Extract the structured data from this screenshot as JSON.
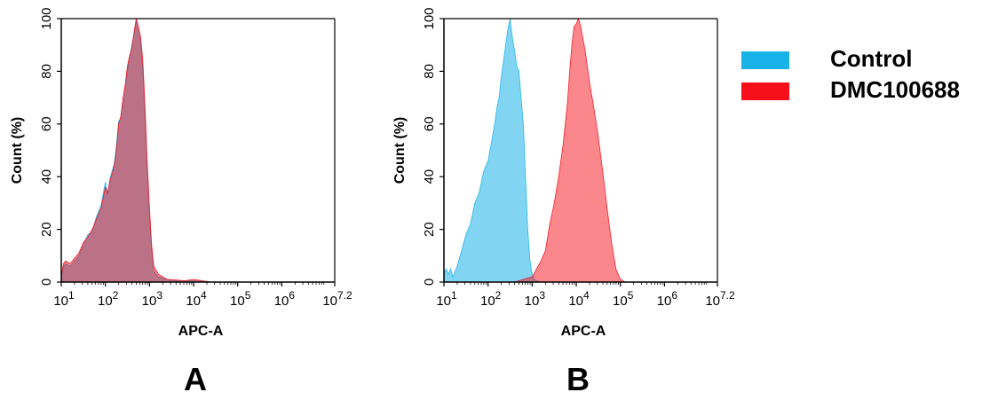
{
  "legend": [
    {
      "label": "Control",
      "color": "#19b2e8"
    },
    {
      "label": "DMC100688",
      "color": "#f5101a"
    }
  ],
  "chart_data": [
    {
      "type": "area",
      "panel_label": "A",
      "xlabel": "APC-A",
      "ylabel": "Count  (%)",
      "x_scale": "log10",
      "xlim": [
        1,
        7.2
      ],
      "ylim": [
        0,
        100
      ],
      "x_ticks": [
        {
          "base": "10",
          "exp": "1"
        },
        {
          "base": "10",
          "exp": "2"
        },
        {
          "base": "10",
          "exp": "3"
        },
        {
          "base": "10",
          "exp": "4"
        },
        {
          "base": "10",
          "exp": "5"
        },
        {
          "base": "10",
          "exp": "6"
        },
        {
          "base": "10",
          "exp": "7.2"
        }
      ],
      "y_ticks": [
        "0",
        "20",
        "40",
        "60",
        "80",
        "100"
      ],
      "series": [
        {
          "name": "Control",
          "color": "#19b2e8",
          "x": [
            1.0,
            1.05,
            1.1,
            1.2,
            1.3,
            1.4,
            1.5,
            1.6,
            1.7,
            1.8,
            1.9,
            2.0,
            2.05,
            2.1,
            2.15,
            2.2,
            2.25,
            2.3,
            2.35,
            2.4,
            2.45,
            2.5,
            2.55,
            2.6,
            2.65,
            2.7,
            2.72,
            2.75,
            2.8,
            2.85,
            2.9,
            2.95,
            3.0,
            3.05,
            3.1,
            3.2,
            3.4,
            3.6,
            3.8,
            4.0,
            4.2,
            4.4
          ],
          "y": [
            2,
            6,
            7,
            6,
            8,
            10,
            14,
            18,
            19,
            25,
            29,
            38,
            33,
            39,
            42,
            45,
            52,
            61,
            62,
            67,
            72,
            80,
            85,
            90,
            94,
            100,
            97,
            95,
            91,
            80,
            62,
            42,
            24,
            12,
            4,
            2,
            1,
            0.5,
            0.5,
            0.5,
            0.3,
            0
          ]
        },
        {
          "name": "DMC100688",
          "color": "#f5101a",
          "x": [
            1.0,
            1.05,
            1.1,
            1.2,
            1.3,
            1.4,
            1.5,
            1.6,
            1.7,
            1.8,
            1.9,
            2.0,
            2.05,
            2.1,
            2.15,
            2.2,
            2.25,
            2.3,
            2.35,
            2.4,
            2.45,
            2.5,
            2.55,
            2.6,
            2.65,
            2.7,
            2.72,
            2.75,
            2.8,
            2.85,
            2.9,
            2.95,
            3.0,
            3.05,
            3.1,
            3.2,
            3.4,
            3.6,
            3.8,
            4.0,
            4.2,
            4.4
          ],
          "y": [
            2,
            7,
            8,
            7,
            9,
            11,
            15,
            17,
            20,
            24,
            28,
            36,
            34,
            38,
            41,
            44,
            50,
            60,
            63,
            70,
            75,
            82,
            86,
            89,
            95,
            100,
            99,
            97,
            93,
            84,
            66,
            45,
            28,
            14,
            6,
            3,
            1,
            0.8,
            0.5,
            1,
            0.5,
            0
          ]
        }
      ]
    },
    {
      "type": "area",
      "panel_label": "B",
      "xlabel": "APC-A",
      "ylabel": "Count  (%)",
      "x_scale": "log10",
      "xlim": [
        1,
        7.2
      ],
      "ylim": [
        0,
        100
      ],
      "x_ticks": [
        {
          "base": "10",
          "exp": "1"
        },
        {
          "base": "10",
          "exp": "2"
        },
        {
          "base": "10",
          "exp": "3"
        },
        {
          "base": "10",
          "exp": "4"
        },
        {
          "base": "10",
          "exp": "5"
        },
        {
          "base": "10",
          "exp": "6"
        },
        {
          "base": "10",
          "exp": "7.2"
        }
      ],
      "y_ticks": [
        "0",
        "20",
        "40",
        "60",
        "80",
        "100"
      ],
      "series": [
        {
          "name": "Control",
          "color": "#19b2e8",
          "x": [
            1.0,
            1.05,
            1.1,
            1.15,
            1.2,
            1.3,
            1.4,
            1.5,
            1.6,
            1.7,
            1.8,
            1.9,
            2.0,
            2.1,
            2.15,
            2.2,
            2.25,
            2.3,
            2.35,
            2.4,
            2.45,
            2.5,
            2.55,
            2.6,
            2.65,
            2.7,
            2.75,
            2.8,
            2.85,
            2.9,
            2.95,
            3.0,
            3.05,
            3.1,
            3.2
          ],
          "y": [
            3,
            5,
            3,
            5,
            2,
            6,
            12,
            18,
            22,
            30,
            34,
            42,
            46,
            55,
            60,
            66,
            70,
            78,
            84,
            90,
            96,
            100,
            93,
            88,
            82,
            80,
            70,
            60,
            40,
            20,
            8,
            3,
            1,
            0.5,
            0
          ]
        },
        {
          "name": "DMC100688",
          "color": "#f5101a",
          "x": [
            2.6,
            2.8,
            3.0,
            3.1,
            3.2,
            3.3,
            3.4,
            3.5,
            3.6,
            3.7,
            3.8,
            3.85,
            3.9,
            3.95,
            4.0,
            4.05,
            4.1,
            4.2,
            4.3,
            4.4,
            4.5,
            4.6,
            4.7,
            4.8,
            4.9,
            5.0,
            5.1
          ],
          "y": [
            0,
            1,
            2,
            5,
            8,
            12,
            22,
            30,
            40,
            52,
            68,
            80,
            90,
            97,
            98,
            100,
            97,
            88,
            76,
            66,
            55,
            42,
            28,
            15,
            5,
            1,
            0
          ]
        }
      ]
    }
  ]
}
